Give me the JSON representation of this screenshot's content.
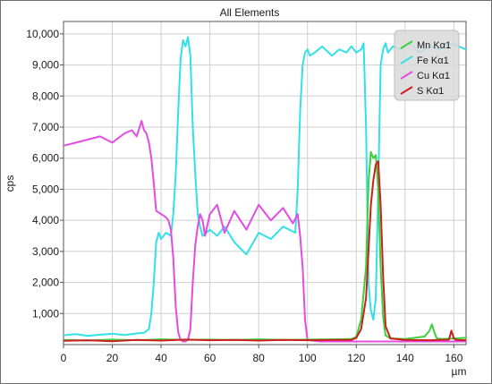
{
  "chart_data": {
    "type": "line",
    "title": "All Elements",
    "xlabel": "µm",
    "ylabel": "cps",
    "xlim": [
      0,
      165
    ],
    "ylim": [
      0,
      10400
    ],
    "xticks": [
      0,
      20,
      40,
      60,
      80,
      100,
      120,
      140,
      160
    ],
    "yticks": [
      1000,
      2000,
      3000,
      4000,
      5000,
      6000,
      7000,
      8000,
      9000,
      10000
    ],
    "ytick_labels": [
      "1,000",
      "2,000",
      "3,000",
      "4,000",
      "5,000",
      "6,000",
      "7,000",
      "8,000",
      "9,000",
      "10,000"
    ],
    "grid": true,
    "legend_position": "top-right",
    "series": [
      {
        "name": "Fe Kα1",
        "color": "#33e0e6",
        "x": [
          0,
          5,
          10,
          15,
          20,
          25,
          30,
          33,
          35,
          36,
          37,
          38,
          39,
          40,
          42,
          44,
          45,
          46,
          47,
          48,
          49,
          50,
          51,
          52,
          53,
          54,
          55,
          56,
          57,
          60,
          63,
          66,
          70,
          75,
          80,
          85,
          90,
          95,
          96,
          97,
          98,
          99,
          100,
          101,
          103,
          106,
          110,
          113,
          116,
          118,
          120,
          122,
          123,
          124,
          125,
          126,
          127,
          128,
          129,
          130,
          131,
          132,
          133,
          135,
          138,
          142,
          146,
          150,
          154,
          158,
          162,
          165
        ],
        "y": [
          300,
          340,
          280,
          320,
          350,
          310,
          360,
          380,
          500,
          1000,
          2000,
          3300,
          3600,
          3400,
          3600,
          3500,
          4200,
          5500,
          7500,
          9200,
          9800,
          9600,
          9900,
          9300,
          7000,
          5500,
          4200,
          3800,
          3500,
          3700,
          3500,
          3800,
          3300,
          2900,
          3600,
          3400,
          3800,
          3600,
          5000,
          7500,
          9000,
          9400,
          9500,
          9300,
          9400,
          9600,
          9300,
          9500,
          9400,
          9600,
          9400,
          9500,
          9700,
          7000,
          2000,
          1100,
          800,
          1500,
          5000,
          9000,
          9500,
          9700,
          9400,
          9600,
          9500,
          9700,
          9400,
          9600,
          9500,
          9700,
          9600,
          9500
        ]
      },
      {
        "name": "Mn Kα1",
        "color": "#3ad13a",
        "x": [
          0,
          10,
          20,
          30,
          40,
          50,
          60,
          70,
          80,
          90,
          100,
          110,
          118,
          120,
          122,
          124,
          125,
          126,
          127,
          128,
          129,
          130,
          131,
          132,
          134,
          140,
          148,
          150,
          151,
          152,
          153,
          155,
          160,
          165
        ],
        "y": [
          150,
          130,
          160,
          140,
          170,
          150,
          160,
          150,
          170,
          150,
          160,
          170,
          180,
          250,
          800,
          2500,
          5200,
          6200,
          6000,
          6100,
          5000,
          2500,
          900,
          300,
          200,
          180,
          260,
          450,
          650,
          400,
          200,
          180,
          200,
          220
        ]
      },
      {
        "name": "Cu Kα1",
        "color": "#e34ce3",
        "x": [
          0,
          5,
          10,
          15,
          20,
          25,
          28,
          30,
          32,
          33,
          34,
          35,
          36,
          37,
          38,
          40,
          42,
          43,
          44,
          45,
          46,
          47,
          48,
          49,
          50,
          51,
          52,
          53,
          54,
          55,
          56,
          57,
          58,
          60,
          63,
          66,
          70,
          75,
          80,
          85,
          90,
          94,
          96,
          97,
          98,
          99,
          100,
          105,
          110,
          120,
          130,
          140,
          150,
          160,
          165
        ],
        "y": [
          6400,
          6500,
          6600,
          6700,
          6500,
          6800,
          6900,
          6700,
          7200,
          6900,
          6800,
          6500,
          6000,
          5200,
          4300,
          4200,
          4100,
          4000,
          3700,
          2800,
          1200,
          400,
          150,
          100,
          100,
          150,
          500,
          2000,
          3200,
          3800,
          4200,
          4000,
          3500,
          4200,
          4500,
          3600,
          4300,
          3700,
          4500,
          4000,
          4400,
          3900,
          4200,
          3500,
          2500,
          800,
          150,
          100,
          100,
          100,
          100,
          100,
          100,
          100,
          100
        ]
      },
      {
        "name": "S Kα1",
        "color": "#cc1f1f",
        "x": [
          0,
          10,
          20,
          30,
          40,
          50,
          60,
          70,
          80,
          90,
          100,
          110,
          118,
          120,
          122,
          124,
          125,
          126,
          127,
          128,
          129,
          130,
          131,
          132,
          134,
          140,
          150,
          158,
          159,
          160,
          161,
          165
        ],
        "y": [
          120,
          140,
          110,
          150,
          130,
          160,
          140,
          150,
          130,
          150,
          140,
          150,
          150,
          220,
          500,
          1500,
          3000,
          4500,
          5300,
          5800,
          5900,
          4500,
          2200,
          600,
          200,
          150,
          140,
          160,
          450,
          200,
          150,
          140
        ]
      }
    ],
    "legend": [
      {
        "label": "Mn Kα1",
        "color": "#3ad13a"
      },
      {
        "label": "Fe Kα1",
        "color": "#33e0e6"
      },
      {
        "label": "Cu Kα1",
        "color": "#e34ce3"
      },
      {
        "label": "S Kα1",
        "color": "#cc1f1f"
      }
    ]
  }
}
